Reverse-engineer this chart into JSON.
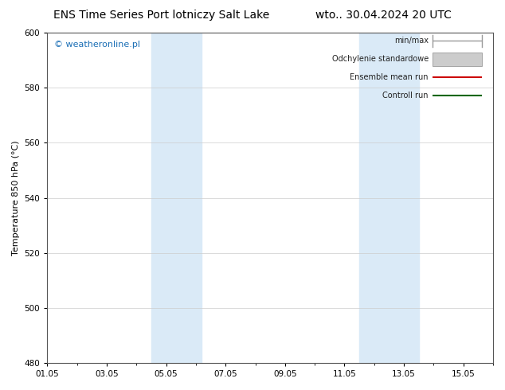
{
  "title_left": "ENS Time Series Port lotniczy Salt Lake",
  "title_right": "wto.. 30.04.2024 20 UTC",
  "ylabel": "Temperature 850 hPa (°C)",
  "ylim": [
    480,
    600
  ],
  "yticks": [
    480,
    500,
    520,
    540,
    560,
    580,
    600
  ],
  "xlim": [
    0,
    15
  ],
  "xtick_positions": [
    0,
    2,
    4,
    6,
    8,
    10,
    12,
    14
  ],
  "xtick_labels": [
    "01.05",
    "03.05",
    "05.05",
    "07.05",
    "09.05",
    "11.05",
    "13.05",
    "15.05"
  ],
  "shaded_bands": [
    {
      "x_start": 3.5,
      "x_end": 5.2
    },
    {
      "x_start": 10.5,
      "x_end": 12.5
    }
  ],
  "shade_color": "#daeaf7",
  "background_color": "#ffffff",
  "grid_color": "#cccccc",
  "watermark_text": "© weatheronline.pl",
  "watermark_color": "#1a6eb5",
  "legend_items": [
    {
      "label": "min/max",
      "color": "#999999",
      "style": "minmax"
    },
    {
      "label": "Odchylenie standardowe",
      "color": "#cccccc",
      "style": "band"
    },
    {
      "label": "Ensemble mean run",
      "color": "#cc0000",
      "style": "line"
    },
    {
      "label": "Controll run",
      "color": "#006600",
      "style": "line"
    }
  ],
  "title_fontsize": 10,
  "tick_fontsize": 7.5,
  "ylabel_fontsize": 8,
  "legend_fontsize": 7,
  "watermark_fontsize": 8
}
